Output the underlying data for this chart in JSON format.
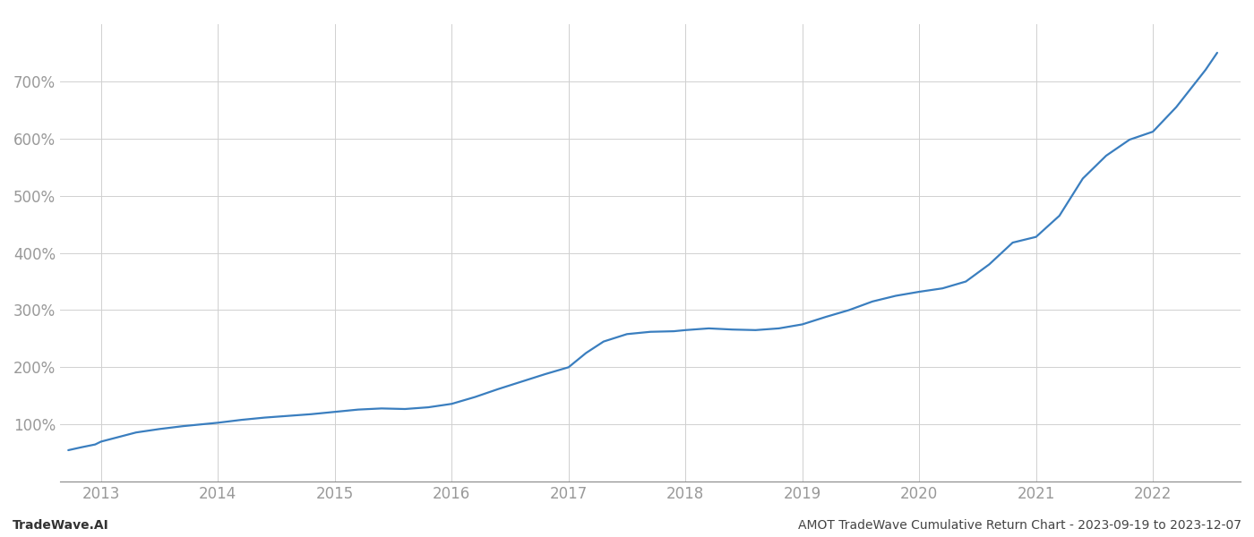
{
  "title": "",
  "footer_left": "TradeWave.AI",
  "footer_right": "AMOT TradeWave Cumulative Return Chart - 2023-09-19 to 2023-12-07",
  "line_color": "#3a7ebf",
  "background_color": "#ffffff",
  "grid_color": "#d0d0d0",
  "x_years": [
    2013,
    2014,
    2015,
    2016,
    2017,
    2018,
    2019,
    2020,
    2021,
    2022
  ],
  "data_x": [
    2012.72,
    2012.83,
    2012.95,
    2013.0,
    2013.15,
    2013.3,
    2013.5,
    2013.7,
    2013.85,
    2014.0,
    2014.2,
    2014.4,
    2014.6,
    2014.8,
    2015.0,
    2015.2,
    2015.4,
    2015.6,
    2015.8,
    2016.0,
    2016.2,
    2016.4,
    2016.6,
    2016.8,
    2017.0,
    2017.15,
    2017.3,
    2017.5,
    2017.7,
    2017.9,
    2018.0,
    2018.2,
    2018.4,
    2018.6,
    2018.8,
    2019.0,
    2019.2,
    2019.4,
    2019.6,
    2019.8,
    2020.0,
    2020.2,
    2020.4,
    2020.6,
    2020.8,
    2021.0,
    2021.2,
    2021.4,
    2021.6,
    2021.8,
    2022.0,
    2022.2,
    2022.45,
    2022.55
  ],
  "data_y": [
    55,
    60,
    65,
    70,
    78,
    86,
    92,
    97,
    100,
    103,
    108,
    112,
    115,
    118,
    122,
    126,
    128,
    127,
    130,
    136,
    148,
    162,
    175,
    188,
    200,
    225,
    245,
    258,
    262,
    263,
    265,
    268,
    266,
    265,
    268,
    275,
    288,
    300,
    315,
    325,
    332,
    338,
    350,
    380,
    418,
    428,
    465,
    530,
    570,
    598,
    612,
    655,
    720,
    750
  ],
  "ylim": [
    0,
    800
  ],
  "yticks": [
    100,
    200,
    300,
    400,
    500,
    600,
    700
  ],
  "xlim": [
    2012.65,
    2022.75
  ],
  "line_width": 1.6,
  "footer_fontsize": 10,
  "tick_fontsize": 12,
  "tick_color": "#999999",
  "axis_bottom_color": "#888888"
}
